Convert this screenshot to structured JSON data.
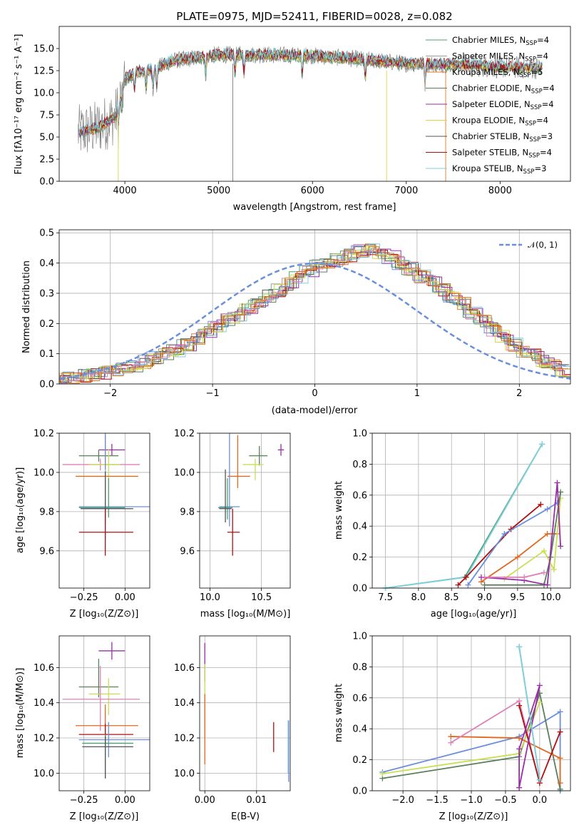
{
  "colors": [
    "#4c9f70",
    "#9a9a9a",
    "#e07b2a",
    "#5b7f5b",
    "#9a2ea8",
    "#d8d840",
    "#555555",
    "#b01010",
    "#7fd0e0"
  ],
  "extra_colors": [
    "#6a8fdc",
    "#e080b8",
    "#c8e050",
    "#e06820"
  ],
  "chart_data": [
    {
      "type": "line",
      "title": "PLATE=0975, MJD=52411, FIBERID=0028, z=0.082",
      "xlabel": "wavelength [Angstrom, rest frame]",
      "ylabel": "Flux [fλ10⁻¹⁷ erg cm⁻² s⁻¹ A⁻¹]",
      "xlim": [
        3300,
        8750
      ],
      "ylim": [
        0,
        17.5
      ],
      "xticks": [
        4000,
        5000,
        6000,
        7000,
        8000
      ],
      "yticks": [
        0.0,
        2.5,
        5.0,
        7.5,
        10.0,
        12.5,
        15.0
      ],
      "legend_position": "upper right",
      "series": [
        {
          "name": "Chabrier MILES, N",
          "sub": "SSP",
          "suffix": "=4"
        },
        {
          "name": "Salpeter MILES, N",
          "sub": "SSP",
          "suffix": "=4"
        },
        {
          "name": "Kroupa MILES, N",
          "sub": "SSP",
          "suffix": "=5"
        },
        {
          "name": "Chabrier ELODIE, N",
          "sub": "SSP",
          "suffix": "=4"
        },
        {
          "name": "Salpeter ELODIE, N",
          "sub": "SSP",
          "suffix": "=4"
        },
        {
          "name": "Kroupa ELODIE, N",
          "sub": "SSP",
          "suffix": "=4"
        },
        {
          "name": "Chabrier STELIB, N",
          "sub": "SSP",
          "suffix": "=3"
        },
        {
          "name": "Salpeter STELIB, N",
          "sub": "SSP",
          "suffix": "=4"
        },
        {
          "name": "Kroupa STELIB, N",
          "sub": "SSP",
          "suffix": "=3"
        }
      ],
      "continuum": {
        "x": [
          3500,
          3700,
          3900,
          4000,
          4100,
          4300,
          4500,
          5000,
          5500,
          6000,
          6500,
          7000,
          7500,
          8000,
          8450
        ],
        "y": [
          5.5,
          6.0,
          7.3,
          11.5,
          12.3,
          12.6,
          13.6,
          14.3,
          14.3,
          14.2,
          13.8,
          13.3,
          13.2,
          12.9,
          12.8
        ]
      }
    },
    {
      "type": "histogram",
      "xlabel": "(data-model)/error",
      "ylabel": "Normed distribution",
      "xlim": [
        -2.5,
        2.5
      ],
      "ylim": [
        0,
        0.51
      ],
      "xticks": [
        -2,
        -1,
        0,
        1,
        2
      ],
      "xtick_labels": [
        "−2",
        "−1",
        "0",
        "1",
        "2"
      ],
      "yticks": [
        0.0,
        0.1,
        0.2,
        0.3,
        0.4,
        0.5
      ],
      "legend": "𝒩(0, 1)",
      "bin_width": 0.1,
      "curve": "normal pdf, mean 0, sigma 1",
      "base_heights": [
        0.02,
        0.024,
        0.027,
        0.032,
        0.037,
        0.045,
        0.053,
        0.062,
        0.073,
        0.086,
        0.1,
        0.11,
        0.13,
        0.15,
        0.17,
        0.19,
        0.21,
        0.225,
        0.245,
        0.265,
        0.29,
        0.31,
        0.33,
        0.35,
        0.37,
        0.39,
        0.4,
        0.41,
        0.425,
        0.44,
        0.445,
        0.43,
        0.42,
        0.4,
        0.38,
        0.355,
        0.34,
        0.31,
        0.29,
        0.265,
        0.235,
        0.21,
        0.18,
        0.16,
        0.13,
        0.11,
        0.095,
        0.075,
        0.06,
        0.045
      ]
    },
    {
      "type": "errorbar",
      "xlabel": "Z [log₁₀(Z/Z⊙)]",
      "ylabel": "age  [log₁₀(age/yr)]",
      "xlim": [
        -0.4,
        0.15
      ],
      "ylim": [
        9.41,
        10.2
      ],
      "xticks": [
        -0.25,
        0.0
      ],
      "xtick_labels": [
        "−0.25",
        "0.00"
      ],
      "yticks": [
        9.6,
        9.8,
        10.0,
        10.2
      ],
      "ytick_labels": [
        "9.6",
        "9.8",
        "10.0",
        "10.2"
      ],
      "points": [
        {
          "x": -0.08,
          "xerr": [
            0.08,
            0.08
          ],
          "y": 10.115,
          "yerr": [
            0.03,
            0.03
          ],
          "color": "#9a2ea8"
        },
        {
          "x": -0.16,
          "xerr": [
            0.12,
            0.12
          ],
          "y": 10.085,
          "yerr": [
            0.03,
            0.03
          ],
          "color": "#5b7f5b"
        },
        {
          "x": -0.15,
          "xerr": [
            0.23,
            0.24
          ],
          "y": 10.04,
          "yerr": [
            0.03,
            0.03
          ],
          "color": "#e080b8"
        },
        {
          "x": -0.1,
          "xerr": [
            0.12,
            0.07
          ],
          "y": 10.04,
          "yerr": [
            0.08,
            0.08
          ],
          "color": "#c8e050"
        },
        {
          "x": -0.12,
          "xerr": [
            0.18,
            0.2
          ],
          "y": 9.98,
          "yerr": [
            0.06,
            0.21
          ],
          "color": "#e06820"
        },
        {
          "x": -0.12,
          "xerr": [
            0.16,
            0.28
          ],
          "y": 9.825,
          "yerr": [
            0.17,
            0.39
          ],
          "color": "#6a8fdc"
        },
        {
          "x": -0.1,
          "xerr": [
            0.18,
            0.1
          ],
          "y": 9.82,
          "yerr": [
            0.05,
            0.15
          ],
          "color": "#4c9f70"
        },
        {
          "x": -0.12,
          "xerr": [
            0.14,
            0.16
          ],
          "y": 9.815,
          "yerr": [
            0.07,
            0.2
          ],
          "color": "#7fd0e0"
        },
        {
          "x": -0.12,
          "xerr": [
            0.15,
            0.17
          ],
          "y": 9.815,
          "yerr": [
            0.07,
            0.19
          ],
          "color": "#555555"
        },
        {
          "x": -0.12,
          "xerr": [
            0.16,
            0.17
          ],
          "y": 9.695,
          "yerr": [
            0.12,
            0.12
          ],
          "color": "#b01010"
        }
      ]
    },
    {
      "type": "errorbar",
      "xlabel": "mass [log₁₀(M/M⊙)]",
      "ylabel": "",
      "xlim": [
        9.9,
        10.78
      ],
      "ylim": [
        9.41,
        10.2
      ],
      "xticks": [
        10.0,
        10.5
      ],
      "xtick_labels": [
        "10.0",
        "10.5"
      ],
      "yticks": [
        9.6,
        9.8,
        10.0,
        10.2
      ],
      "ytick_labels": [
        "9.6",
        "9.8",
        "10.0",
        "10.2"
      ],
      "points": [
        {
          "x": 10.69,
          "xerr": [
            0.03,
            0.03
          ],
          "y": 10.115,
          "yerr": [
            0.03,
            0.03
          ],
          "color": "#9a2ea8"
        },
        {
          "x": 10.48,
          "xerr": [
            0.1,
            0.08
          ],
          "y": 10.085,
          "yerr": [
            0.05,
            0.05
          ],
          "color": "#5b7f5b"
        },
        {
          "x": 10.44,
          "xerr": [
            0.12,
            0.08
          ],
          "y": 10.04,
          "yerr": [
            0.08,
            0.03
          ],
          "color": "#c8e050"
        },
        {
          "x": 10.27,
          "xerr": [
            0.1,
            0.12
          ],
          "y": 9.98,
          "yerr": [
            0.06,
            0.21
          ],
          "color": "#e06820"
        },
        {
          "x": 10.19,
          "xerr": [
            0.1,
            0.1
          ],
          "y": 9.825,
          "yerr": [
            0.1,
            0.39
          ],
          "color": "#6a8fdc"
        },
        {
          "x": 10.17,
          "xerr": [
            0.09,
            0.05
          ],
          "y": 9.82,
          "yerr": [
            0.06,
            0.15
          ],
          "color": "#4c9f70"
        },
        {
          "x": 10.15,
          "xerr": [
            0.06,
            0.06
          ],
          "y": 9.815,
          "yerr": [
            0.07,
            0.2
          ],
          "color": "#555555"
        },
        {
          "x": 10.22,
          "xerr": [
            0.05,
            0.07
          ],
          "y": 9.695,
          "yerr": [
            0.12,
            0.12
          ],
          "color": "#b01010"
        }
      ]
    },
    {
      "type": "line",
      "xlabel": "age  [log₁₀(age/yr)]",
      "ylabel": "mass weight",
      "xlim": [
        7.3,
        10.3
      ],
      "ylim": [
        0,
        1.0
      ],
      "xticks": [
        7.5,
        8.0,
        8.5,
        9.0,
        9.5,
        10.0
      ],
      "xtick_labels": [
        "7.5",
        "8.0",
        "8.5",
        "9.0",
        "9.5",
        "10.0"
      ],
      "yticks": [
        0.0,
        0.2,
        0.4,
        0.6,
        0.8,
        1.0
      ],
      "ytick_labels": [
        "0.0",
        "0.2",
        "0.4",
        "0.6",
        "0.8",
        "1.0"
      ],
      "series": [
        {
          "x": [
            7.5,
            8.7,
            9.87
          ],
          "y": [
            0.0,
            0.07,
            0.93
          ],
          "color": "#4c9f70"
        },
        {
          "x": [
            7.5,
            8.72,
            9.87
          ],
          "y": [
            0.0,
            0.07,
            0.93
          ],
          "color": "#7fd0e0"
        },
        {
          "x": [
            8.6,
            8.72,
            9.4,
            9.85
          ],
          "y": [
            0.02,
            0.07,
            0.38,
            0.54
          ],
          "color": "#b01010"
        },
        {
          "x": [
            8.75,
            9.3,
            9.95,
            10.1
          ],
          "y": [
            0.02,
            0.35,
            0.51,
            0.55
          ],
          "color": "#6a8fdc"
        },
        {
          "x": [
            8.95,
            9.5,
            9.95,
            10.1
          ],
          "y": [
            0.04,
            0.2,
            0.35,
            0.35
          ],
          "color": "#e06820"
        },
        {
          "x": [
            9.3,
            9.9,
            10.05,
            10.15
          ],
          "y": [
            0.06,
            0.24,
            0.12,
            0.58
          ],
          "color": "#c8e050"
        },
        {
          "x": [
            9.0,
            9.9,
            10.0,
            10.15
          ],
          "y": [
            0.02,
            0.02,
            0.2,
            0.62
          ],
          "color": "#5b7f5b"
        },
        {
          "x": [
            8.95,
            9.6,
            9.95,
            10.1,
            10.15
          ],
          "y": [
            0.07,
            0.05,
            0.02,
            0.68,
            0.27
          ],
          "color": "#9a2ea8"
        },
        {
          "x": [
            9.0,
            9.6,
            9.9
          ],
          "y": [
            0.07,
            0.07,
            0.1
          ],
          "color": "#e080b8"
        }
      ]
    },
    {
      "type": "errorbar",
      "xlabel": "Z [log₁₀(Z/Z⊙)]",
      "ylabel": "mass [log₁₀(M/M⊙)]",
      "xlim": [
        -0.4,
        0.15
      ],
      "ylim": [
        9.9,
        10.78
      ],
      "xticks": [
        -0.25,
        0.0
      ],
      "xtick_labels": [
        "−0.25",
        "0.00"
      ],
      "yticks": [
        10.0,
        10.2,
        10.4,
        10.6
      ],
      "ytick_labels": [
        "10.0",
        "10.2",
        "10.4",
        "10.6"
      ],
      "points": [
        {
          "x": -0.08,
          "xerr": [
            0.08,
            0.08
          ],
          "y": 10.695,
          "yerr": [
            0.05,
            0.05
          ],
          "color": "#9a2ea8"
        },
        {
          "x": -0.16,
          "xerr": [
            0.12,
            0.12
          ],
          "y": 10.49,
          "yerr": [
            0.06,
            0.16
          ],
          "color": "#5b7f5b"
        },
        {
          "x": -0.1,
          "xerr": [
            0.12,
            0.07
          ],
          "y": 10.45,
          "yerr": [
            0.12,
            0.09
          ],
          "color": "#c8e050"
        },
        {
          "x": -0.15,
          "xerr": [
            0.23,
            0.24
          ],
          "y": 10.42,
          "yerr": [
            0.18,
            0.19
          ],
          "color": "#e080b8"
        },
        {
          "x": -0.12,
          "xerr": [
            0.18,
            0.2
          ],
          "y": 10.27,
          "yerr": [
            0.1,
            0.12
          ],
          "color": "#e06820"
        },
        {
          "x": -0.12,
          "xerr": [
            0.16,
            0.17
          ],
          "y": 10.22,
          "yerr": [
            0.06,
            0.06
          ],
          "color": "#b01010"
        },
        {
          "x": -0.1,
          "xerr": [
            0.18,
            0.28
          ],
          "y": 10.19,
          "yerr": [
            0.1,
            0.1
          ],
          "color": "#6a8fdc"
        },
        {
          "x": -0.12,
          "xerr": [
            0.14,
            0.17
          ],
          "y": 10.17,
          "yerr": [
            0.2,
            0.05
          ],
          "color": "#4c9f70"
        },
        {
          "x": -0.12,
          "xerr": [
            0.14,
            0.17
          ],
          "y": 10.15,
          "yerr": [
            0.18,
            0.06
          ],
          "color": "#555555"
        }
      ]
    },
    {
      "type": "errorbar",
      "xlabel": "E(B-V)",
      "ylabel": "",
      "xlim": [
        -0.001,
        0.0165
      ],
      "ylim": [
        9.9,
        10.78
      ],
      "xticks": [
        0.0,
        0.01
      ],
      "xtick_labels": [
        "0.00",
        "0.01"
      ],
      "yticks": [
        10.0,
        10.2,
        10.4,
        10.6
      ],
      "ytick_labels": [
        "10.0",
        "10.2",
        "10.4",
        "10.6"
      ],
      "points": [
        {
          "x": 0.0,
          "y": 10.62,
          "yerr": [
            0.1,
            0.12
          ],
          "color": "#9a2ea8"
        },
        {
          "x": 0.0,
          "y": 10.4,
          "yerr": [
            0.2,
            0.22
          ],
          "color": "#c8e050"
        },
        {
          "x": 0.0,
          "y": 10.25,
          "yerr": [
            0.2,
            0.2
          ],
          "color": "#e06820"
        },
        {
          "x": 0.0133,
          "y": 10.2,
          "yerr": [
            0.08,
            0.09
          ],
          "color": "#b01010"
        },
        {
          "x": 0.0161,
          "y": 10.2,
          "yerr": [
            0.2,
            0.1
          ],
          "color": "#7fd0e0"
        },
        {
          "x": 0.0162,
          "y": 10.2,
          "yerr": [
            0.25,
            0.1
          ],
          "color": "#6a8fdc"
        }
      ]
    },
    {
      "type": "line",
      "xlabel": "Z [log₁₀(Z/Z⊙)]",
      "ylabel": "mass weight",
      "xlim": [
        -2.45,
        0.45
      ],
      "ylim": [
        0,
        1.0
      ],
      "xticks": [
        -2.0,
        -1.5,
        -1.0,
        -0.5,
        0.0
      ],
      "xtick_labels": [
        "−2.0",
        "−1.5",
        "−1.0",
        "−0.5",
        "0.0"
      ],
      "yticks": [
        0.0,
        0.2,
        0.4,
        0.6,
        0.8,
        1.0
      ],
      "ytick_labels": [
        "0.0",
        "0.2",
        "0.4",
        "0.6",
        "0.8",
        "1.0"
      ],
      "series": [
        {
          "x": [
            -2.3,
            -0.3,
            0.3,
            0.3
          ],
          "y": [
            0.12,
            0.35,
            0.51,
            0.0
          ],
          "color": "#6a8fdc"
        },
        {
          "x": [
            -2.3,
            -0.3,
            0.0,
            0.3
          ],
          "y": [
            0.08,
            0.22,
            0.63,
            0.01
          ],
          "color": "#5b7f5b"
        },
        {
          "x": [
            -2.3,
            -0.3,
            0.0
          ],
          "y": [
            0.11,
            0.24,
            0.57
          ],
          "color": "#c8e050"
        },
        {
          "x": [
            -1.3,
            -0.3,
            0.3,
            0.3
          ],
          "y": [
            0.35,
            0.34,
            0.21,
            0.05
          ],
          "color": "#e06820"
        },
        {
          "x": [
            -1.3,
            -0.3,
            0.0
          ],
          "y": [
            0.31,
            0.58,
            0.05
          ],
          "color": "#e080b8"
        },
        {
          "x": [
            -0.3,
            0.0,
            0.3
          ],
          "y": [
            0.55,
            0.05,
            0.38
          ],
          "color": "#b01010"
        },
        {
          "x": [
            -0.3,
            -0.3,
            0.0,
            -0.3
          ],
          "y": [
            0.02,
            0.27,
            0.68,
            0.02
          ],
          "color": "#9a2ea8"
        },
        {
          "x": [
            -0.3,
            0.0
          ],
          "y": [
            0.93,
            0.07
          ],
          "color": "#4c9f70"
        },
        {
          "x": [
            -0.3,
            0.0
          ],
          "y": [
            0.93,
            0.07
          ],
          "color": "#7fd0e0"
        }
      ]
    }
  ]
}
